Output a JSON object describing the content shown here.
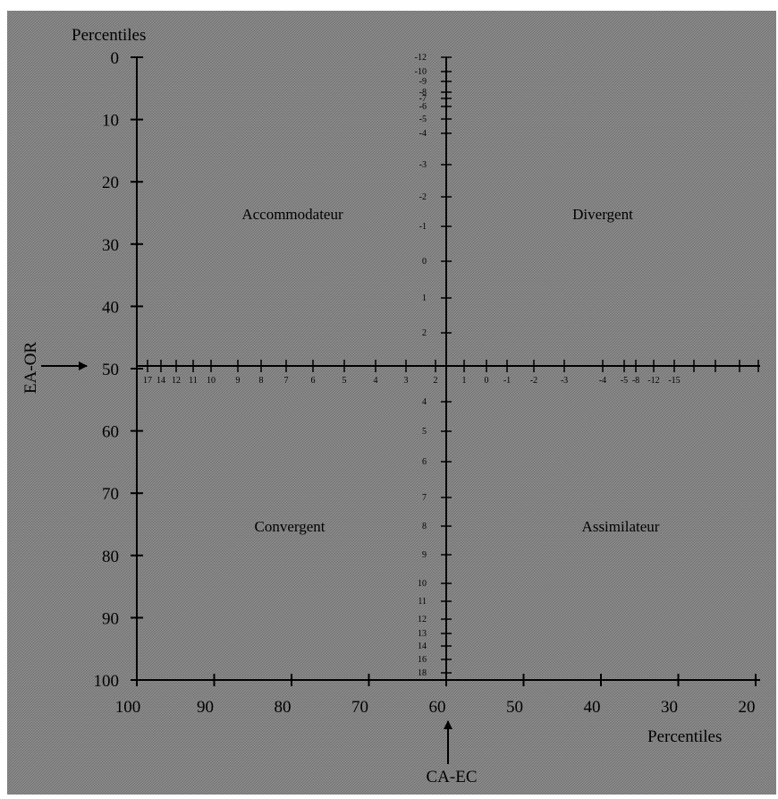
{
  "background_color": "#8c8c8c",
  "pattern_color": "#6e6e6e",
  "left_axis": {
    "title": "Percentiles",
    "ticks": [
      "0",
      "10",
      "20",
      "30",
      "40",
      "50",
      "60",
      "70",
      "80",
      "90",
      "100"
    ]
  },
  "bottom_axis": {
    "title": "Percentiles",
    "ticks": [
      "100",
      "90",
      "80",
      "70",
      "60",
      "50",
      "40",
      "30",
      "20"
    ]
  },
  "left_marker": "EA-OR",
  "bottom_marker": "CA-EC",
  "quadrants": {
    "top_left": "Accommodateur",
    "top_right": "Divergent",
    "bottom_left": "Convergent",
    "bottom_right": "Assimilateur"
  },
  "center_v_upper": [
    "-12",
    "-10",
    "-9",
    "-8",
    "-7",
    "-6",
    "-5",
    "-4",
    "-3",
    "-2",
    "-1",
    "0",
    "1",
    "2"
  ],
  "center_v_lower": [
    "4",
    "5",
    "6",
    "7",
    "8",
    "9",
    "10",
    "11",
    "12",
    "13",
    "14",
    "16",
    "18"
  ],
  "center_h_left": [
    "17",
    "14",
    "12",
    "11",
    "10",
    "9",
    "8",
    "7",
    "6",
    "5",
    "4",
    "3",
    "2"
  ],
  "center_h_right": [
    "1",
    "0",
    "-1",
    "-2",
    "-3",
    "-4",
    "-5",
    "-8",
    "-12",
    "-15"
  ]
}
